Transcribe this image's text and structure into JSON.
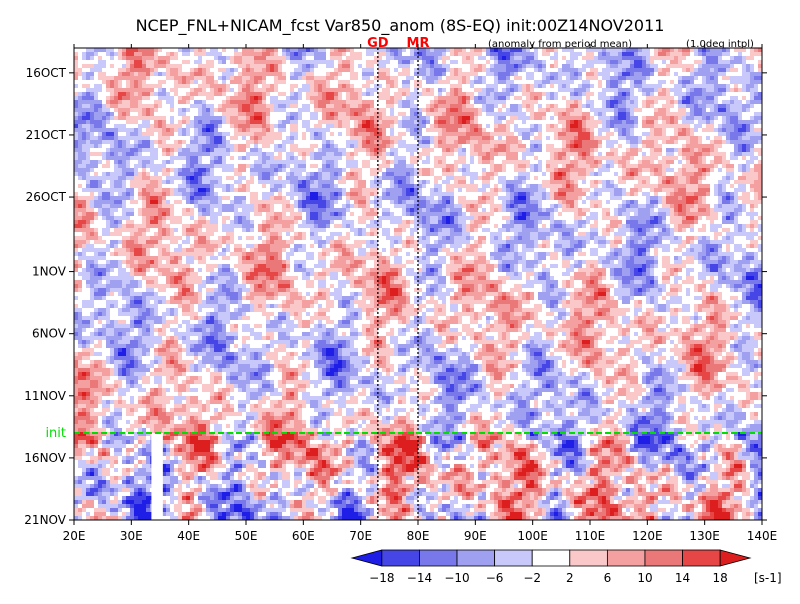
{
  "chart_data": {
    "type": "heatmap",
    "title": "NCEP_FNL+NICAM_fcst Var850_anom (8S-EQ) init:00Z14NOV2011",
    "subtitle_left": "(anomaly from period mean)",
    "subtitle_right": "(1.0deg intpl)",
    "x_axis": {
      "range": [
        20,
        140
      ],
      "ticks": [
        {
          "value": 20,
          "label": "20E"
        },
        {
          "value": 30,
          "label": "30E"
        },
        {
          "value": 40,
          "label": "40E"
        },
        {
          "value": 50,
          "label": "50E"
        },
        {
          "value": 60,
          "label": "60E"
        },
        {
          "value": 70,
          "label": "70E"
        },
        {
          "value": 80,
          "label": "80E"
        },
        {
          "value": 90,
          "label": "90E"
        },
        {
          "value": 100,
          "label": "100E"
        },
        {
          "value": 110,
          "label": "110E"
        },
        {
          "value": 120,
          "label": "120E"
        },
        {
          "value": 130,
          "label": "130E"
        },
        {
          "value": 140,
          "label": "140E"
        }
      ]
    },
    "y_axis": {
      "range": [
        "2011-10-14",
        "2011-11-21"
      ],
      "ticks": [
        {
          "value": "2011-10-16",
          "label": "16OCT"
        },
        {
          "value": "2011-10-21",
          "label": "21OCT"
        },
        {
          "value": "2011-10-26",
          "label": "26OCT"
        },
        {
          "value": "2011-11-01",
          "label": "1NOV"
        },
        {
          "value": "2011-11-06",
          "label": "6NOV"
        },
        {
          "value": "2011-11-11",
          "label": "11NOV"
        },
        {
          "value": "2011-11-16",
          "label": "16NOV"
        },
        {
          "value": "2011-11-21",
          "label": "21NOV"
        }
      ]
    },
    "init_line": {
      "date": "2011-11-14",
      "label": "init",
      "color": "#00dd00"
    },
    "markers": [
      {
        "label": "GD",
        "x": 73,
        "color": "#ff0000"
      },
      {
        "label": "MR",
        "x": 80,
        "color": "#ff0000"
      }
    ],
    "colorbar": {
      "levels": [
        -18,
        -14,
        -10,
        -6,
        -2,
        2,
        6,
        10,
        14,
        18
      ],
      "labels": [
        "−18",
        "−14",
        "−10",
        "−6",
        "−2",
        "2",
        "6",
        "10",
        "14",
        "18"
      ],
      "colors": [
        "#1e1ee6",
        "#4646e6",
        "#7878eb",
        "#a0a0f0",
        "#c8c8fa",
        "#ffffff",
        "#fac8c8",
        "#f5a0a0",
        "#eb7878",
        "#e64646",
        "#dc1e1e"
      ],
      "unit": "[s-1]"
    },
    "no_data_bands": [
      {
        "x_range": [
          33.5,
          35.5
        ],
        "from": "2011-11-14",
        "to": "2011-11-21"
      }
    ],
    "grid": false
  }
}
